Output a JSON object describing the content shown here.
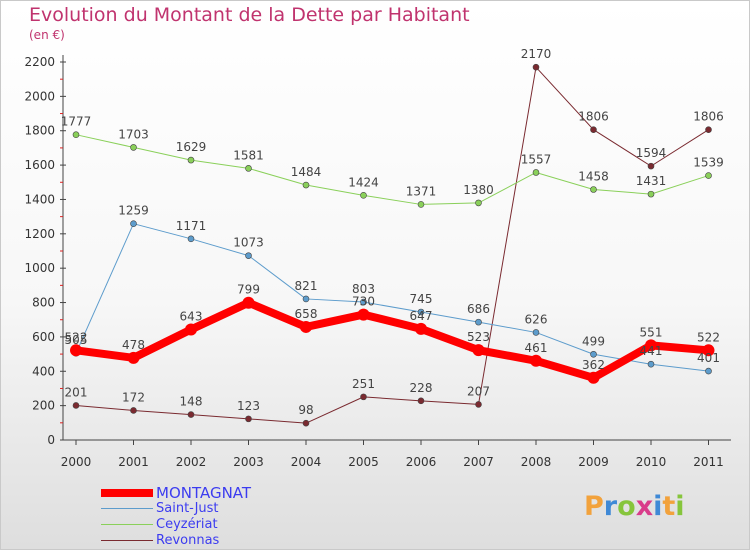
{
  "header": {
    "title": "Evolution du Montant de la Dette par Habitant",
    "subtitle": "(en €)"
  },
  "logo": {
    "text": "Proxiti"
  },
  "chart_data": {
    "type": "line",
    "categories": [
      "2000",
      "2001",
      "2002",
      "2003",
      "2004",
      "2005",
      "2006",
      "2007",
      "2008",
      "2009",
      "2010",
      "2011"
    ],
    "ylim": [
      0,
      2200
    ],
    "yticks": [
      0,
      200,
      400,
      600,
      800,
      1000,
      1200,
      1400,
      1600,
      1800,
      2000,
      2200
    ],
    "grid": false,
    "legend_position": "bottom-left",
    "series": [
      {
        "name": "MONTAGNAT",
        "color": "#ff0000",
        "values": [
          522,
          478,
          643,
          799,
          658,
          730,
          647,
          523,
          461,
          362,
          551,
          522
        ]
      },
      {
        "name": "Saint-Just",
        "color": "#5d9ccc",
        "values": [
          505,
          1259,
          1171,
          1073,
          821,
          803,
          745,
          686,
          626,
          499,
          441,
          401
        ]
      },
      {
        "name": "Ceyzériat",
        "color": "#8ad05a",
        "values": [
          1777,
          1703,
          1629,
          1581,
          1484,
          1424,
          1371,
          1380,
          1557,
          1458,
          1431,
          1539
        ]
      },
      {
        "name": "Revonnas",
        "color": "#7a2a30",
        "values": [
          201,
          172,
          148,
          123,
          98,
          251,
          228,
          207,
          2170,
          1806,
          1594,
          1806
        ]
      }
    ]
  }
}
